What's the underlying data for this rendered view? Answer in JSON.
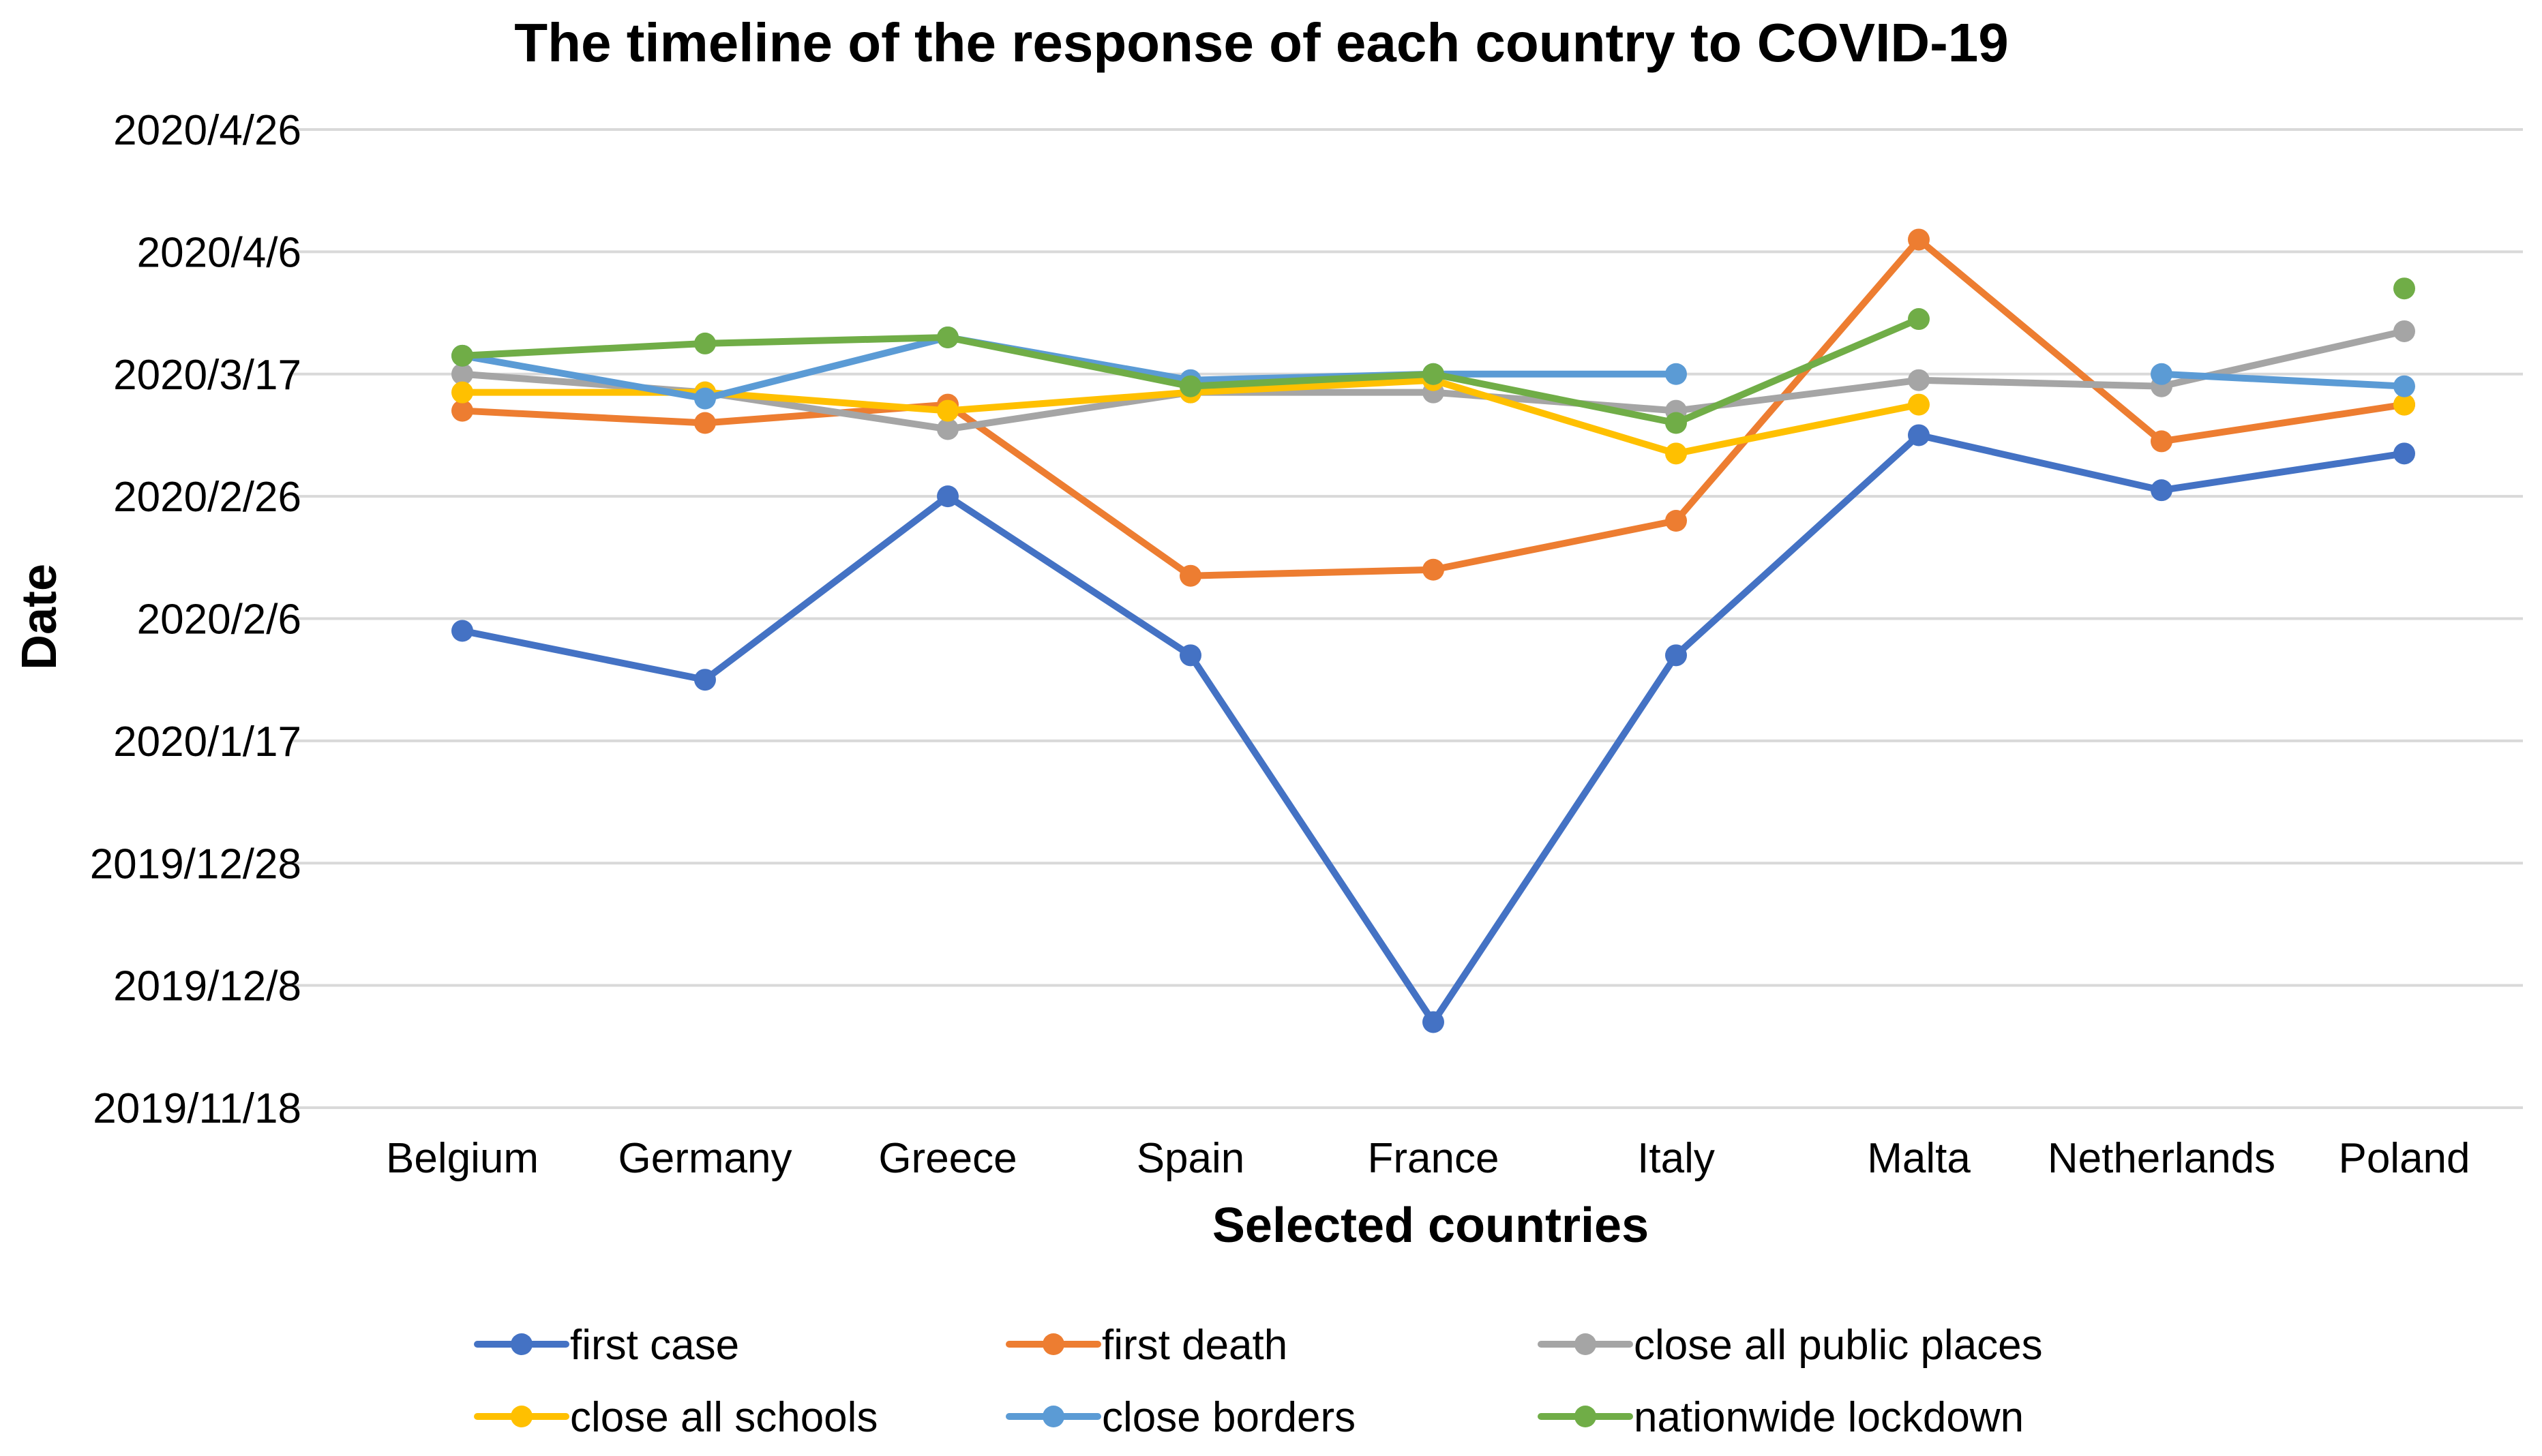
{
  "chart_data": {
    "type": "line",
    "title": "The timeline of the response of each country to COVID-19",
    "xlabel": "Selected countries",
    "ylabel": "Date",
    "categories": [
      "Belgium",
      "Germany",
      "Greece",
      "Spain",
      "France",
      "Italy",
      "Malta",
      "Netherlands",
      "Poland"
    ],
    "y_ticks": [
      "2019/11/18",
      "2019/12/8",
      "2019/12/28",
      "2020/1/17",
      "2020/2/6",
      "2020/2/26",
      "2020/3/17",
      "2020/4/6",
      "2020/4/26"
    ],
    "y_tick_days": [
      0,
      20,
      40,
      60,
      80,
      100,
      120,
      140,
      160
    ],
    "y_axis_origin_date": "2019/11/18",
    "ylim_days": [
      0,
      160
    ],
    "grid": true,
    "legend_position": "bottom",
    "series": [
      {
        "name": "first case",
        "color": "#4472c4",
        "values_days": [
          78,
          70,
          100,
          74,
          14,
          74,
          110,
          101,
          107
        ]
      },
      {
        "name": "first death",
        "color": "#ed7d31",
        "values_days": [
          114,
          112,
          115,
          87,
          88,
          96,
          142,
          109,
          115
        ]
      },
      {
        "name": "close all public places",
        "color": "#a5a5a5",
        "values_days": [
          120,
          117,
          111,
          117,
          117,
          114,
          119,
          118,
          127
        ]
      },
      {
        "name": "close all schools",
        "color": "#ffc000",
        "values_days": [
          117,
          117,
          114,
          117,
          119,
          107,
          115,
          null,
          115
        ]
      },
      {
        "name": "close borders",
        "color": "#5b9bd5",
        "values_days": [
          123,
          116,
          126,
          119,
          120,
          120,
          null,
          120,
          118
        ]
      },
      {
        "name": "nationwide lockdown",
        "color": "#70ad47",
        "values_days": [
          123,
          125,
          126,
          118,
          120,
          112,
          129,
          null,
          134
        ]
      }
    ]
  }
}
